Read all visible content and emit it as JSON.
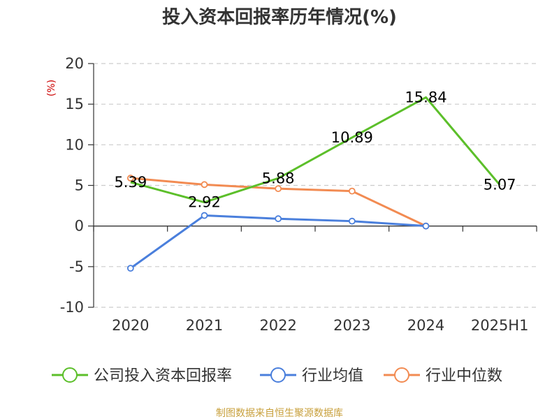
{
  "chart_data": {
    "type": "line",
    "title": "投入资本回报率历年情况(%)",
    "ylabel": "(%)",
    "categories": [
      "2020",
      "2021",
      "2022",
      "2023",
      "2024",
      "2025H1"
    ],
    "ylim": [
      -10,
      20
    ],
    "yticks": [
      -10,
      -5,
      0,
      5,
      10,
      15,
      20
    ],
    "grid": true,
    "legend_position": "bottom",
    "series": [
      {
        "name": "公司投入资本回报率",
        "color": "#5cbf2a",
        "values": [
          5.39,
          2.92,
          5.88,
          10.89,
          15.84,
          5.07
        ],
        "labels": [
          "5.39",
          "2.92",
          "5.88",
          "10.89",
          "15.84",
          "5.07"
        ],
        "show_labels": true
      },
      {
        "name": "行业均值",
        "color": "#4a7fdc",
        "values": [
          -5.2,
          1.3,
          0.9,
          0.6,
          0.0,
          null
        ],
        "show_labels": false
      },
      {
        "name": "行业中位数",
        "color": "#f28b52",
        "values": [
          5.9,
          5.1,
          4.6,
          4.3,
          0.0,
          null
        ],
        "show_labels": false
      }
    ],
    "source": "制图数据来自恒生聚源数据库"
  },
  "colors": {
    "ylabel": "#cc0000",
    "source": "#c8a03c",
    "axis": "#333333",
    "grid": "#cccccc"
  }
}
